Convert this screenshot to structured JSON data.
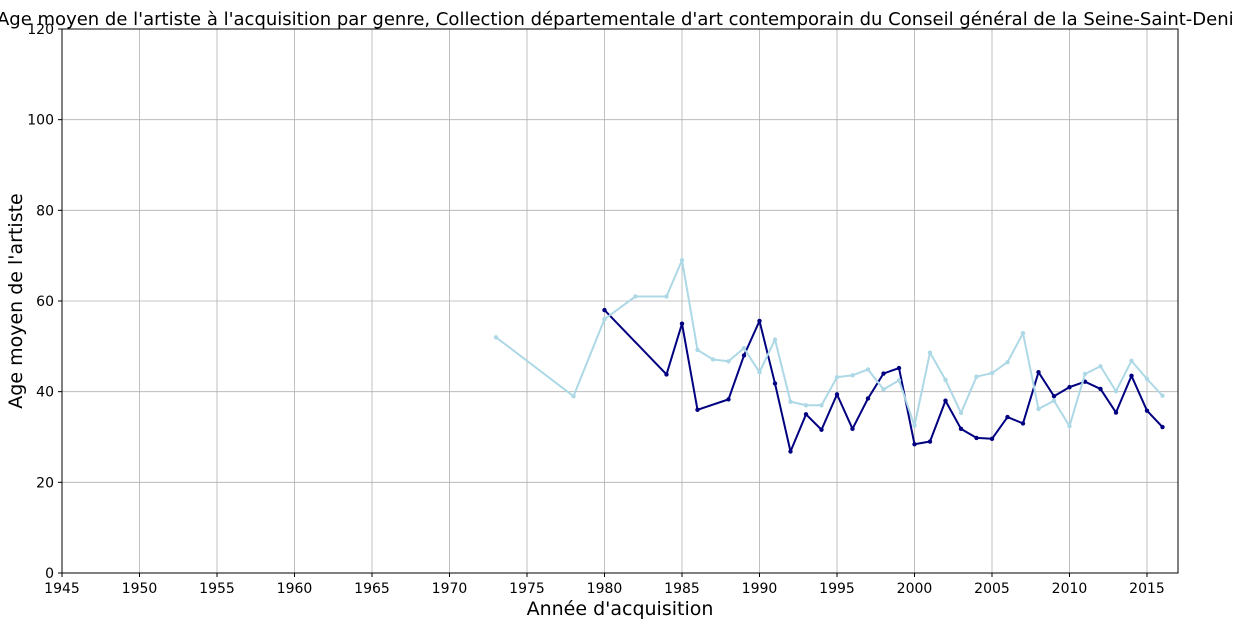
{
  "chart_data": {
    "type": "line",
    "title": "Age moyen de l'artiste à l'acquisition par genre, Collection départementale d'art contemporain du Conseil général de la Seine-Saint-Denis",
    "xlabel": "Année d'acquisition",
    "ylabel": "Age moyen de l'artiste",
    "xlim": [
      1945,
      2017
    ],
    "ylim": [
      0,
      120
    ],
    "xticks": [
      "1945",
      "1950",
      "1955",
      "1960",
      "1965",
      "1970",
      "1975",
      "1980",
      "1985",
      "1990",
      "1995",
      "2000",
      "2005",
      "2010",
      "2015"
    ],
    "yticks": [
      "0",
      "20",
      "40",
      "60",
      "80",
      "100",
      "120"
    ],
    "grid": true,
    "series": [
      {
        "color": "#000080",
        "x": [
          1980,
          1984,
          1985,
          1986,
          1988,
          1989,
          1990,
          1991,
          1992,
          1993,
          1994,
          1995,
          1996,
          1997,
          1998,
          1999,
          2000,
          2001,
          2002,
          2003,
          2004,
          2005,
          2006,
          2007,
          2008,
          2009,
          2010,
          2011,
          2012,
          2013,
          2014,
          2015,
          2016
        ],
        "y": [
          58,
          43.8,
          55,
          36,
          38.3,
          48,
          55.6,
          41.8,
          26.8,
          35,
          31.6,
          39.4,
          31.8,
          38.5,
          44,
          45.2,
          28.4,
          29,
          38,
          31.8,
          29.8,
          29.6,
          34.4,
          33,
          44.3,
          39,
          41,
          42.2,
          40.6,
          35.4,
          43.5,
          35.8,
          32.2
        ]
      },
      {
        "color": "#add8e6",
        "x": [
          1973,
          1978,
          1980,
          1982,
          1984,
          1985,
          1986,
          1987,
          1988,
          1989,
          1990,
          1991,
          1992,
          1993,
          1994,
          1995,
          1996,
          1997,
          1998,
          1999,
          2000,
          2001,
          2002,
          2003,
          2004,
          2005,
          2006,
          2007,
          2008,
          2009,
          2010,
          2011,
          2012,
          2013,
          2014,
          2015,
          2016
        ],
        "y": [
          52,
          39,
          56,
          61,
          61,
          69,
          49.2,
          47.1,
          46.7,
          49.6,
          44.3,
          51.5,
          37.8,
          37,
          37,
          43.2,
          43.6,
          44.9,
          40.5,
          42.5,
          32.5,
          48.6,
          42.6,
          35.3,
          43.3,
          44.1,
          46.5,
          52.9,
          36.2,
          38,
          32.4,
          43.9,
          45.6,
          40.1,
          46.8,
          42.8,
          39.1
        ]
      }
    ]
  }
}
